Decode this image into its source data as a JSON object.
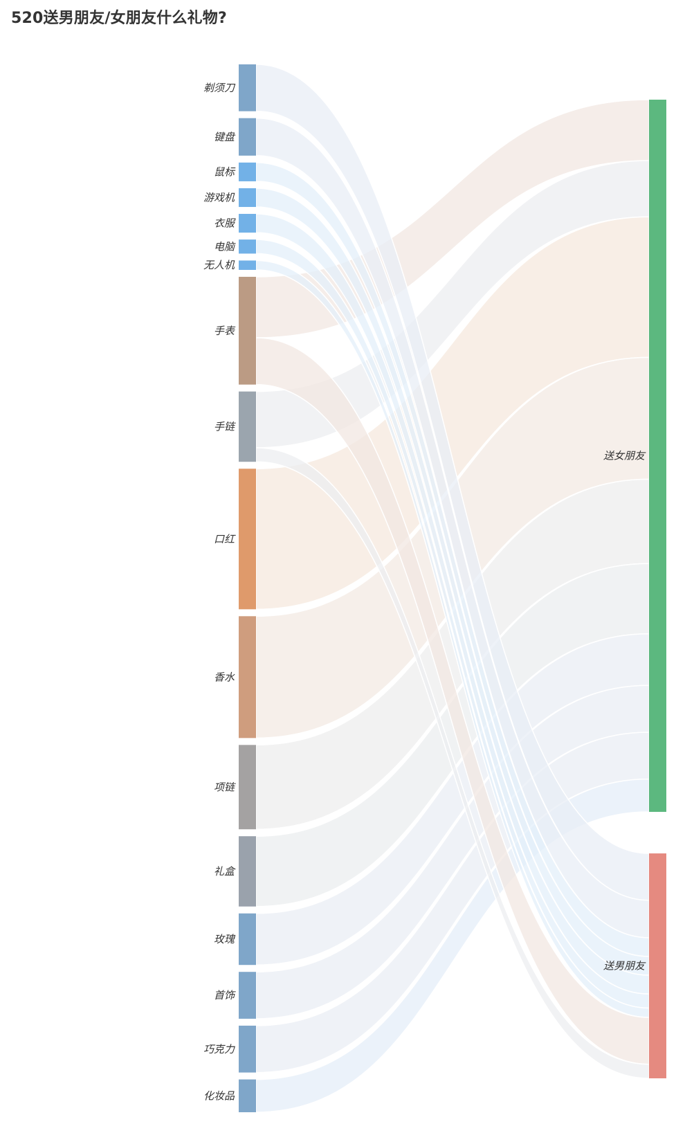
{
  "page": {
    "title": "520送男朋友/女朋友什么礼物?"
  },
  "chart_data": {
    "type": "sankey",
    "title": "520送男朋友/女朋友什么礼物?",
    "sources": [
      {
        "name": "剃须刀",
        "color": "#7fa6c9"
      },
      {
        "name": "键盘",
        "color": "#7fa6c9"
      },
      {
        "name": "鼠标",
        "color": "#72b1e7"
      },
      {
        "name": "游戏机",
        "color": "#72b1e7"
      },
      {
        "name": "衣服",
        "color": "#72b1e7"
      },
      {
        "name": "电脑",
        "color": "#72b1e7"
      },
      {
        "name": "无人机",
        "color": "#72b1e7"
      },
      {
        "name": "手表",
        "color": "#bb9b84"
      },
      {
        "name": "手链",
        "color": "#9ba5ae"
      },
      {
        "name": "口红",
        "color": "#df9a6b"
      },
      {
        "name": "香水",
        "color": "#cf9d7e"
      },
      {
        "name": "项链",
        "color": "#a4a2a2"
      },
      {
        "name": "礼盒",
        "color": "#9aa2ac"
      },
      {
        "name": "玫瑰",
        "color": "#7fa6c9"
      },
      {
        "name": "首饰",
        "color": "#7fa6c9"
      },
      {
        "name": "巧克力",
        "color": "#7fa6c9"
      },
      {
        "name": "化妆品",
        "color": "#7fa6c9"
      }
    ],
    "targets": [
      {
        "name": "送女朋友",
        "color": "#5cb87f"
      },
      {
        "name": "送男朋友",
        "color": "#e58a80"
      }
    ],
    "links": [
      {
        "source": "手表",
        "target": "送女朋友",
        "value": 13,
        "color": "#f2e7e1"
      },
      {
        "source": "手链",
        "target": "送女朋友",
        "value": 12,
        "color": "#eceef0"
      },
      {
        "source": "口红",
        "target": "送女朋友",
        "value": 30,
        "color": "#f6e8de"
      },
      {
        "source": "香水",
        "target": "送女朋友",
        "value": 26,
        "color": "#f3e9e3"
      },
      {
        "source": "项链",
        "target": "送女朋友",
        "value": 18,
        "color": "#eeeeee"
      },
      {
        "source": "礼盒",
        "target": "送女朋友",
        "value": 15,
        "color": "#ebedef"
      },
      {
        "source": "玫瑰",
        "target": "送女朋友",
        "value": 11,
        "color": "#e9eef4"
      },
      {
        "source": "首饰",
        "target": "送女朋友",
        "value": 10,
        "color": "#e9eef4"
      },
      {
        "source": "巧克力",
        "target": "送女朋友",
        "value": 10,
        "color": "#e9eef4"
      },
      {
        "source": "化妆品",
        "target": "送女朋友",
        "value": 7,
        "color": "#e4eef8"
      },
      {
        "source": "剃须刀",
        "target": "送男朋友",
        "value": 10,
        "color": "#e8eef5"
      },
      {
        "source": "键盘",
        "target": "送男朋友",
        "value": 8,
        "color": "#e8eef5"
      },
      {
        "source": "鼠标",
        "target": "送男朋友",
        "value": 4,
        "color": "#e3eff9"
      },
      {
        "source": "游戏机",
        "target": "送男朋友",
        "value": 4,
        "color": "#e3eff9"
      },
      {
        "source": "衣服",
        "target": "送男朋友",
        "value": 4,
        "color": "#e3eff9"
      },
      {
        "source": "电脑",
        "target": "送男朋友",
        "value": 3,
        "color": "#e3eff9"
      },
      {
        "source": "无人机",
        "target": "送男朋友",
        "value": 2,
        "color": "#e3eff9"
      },
      {
        "source": "手表",
        "target": "送男朋友",
        "value": 10,
        "color": "#f2e7e1"
      },
      {
        "source": "手链",
        "target": "送男朋友",
        "value": 3,
        "color": "#eceef0"
      }
    ]
  }
}
